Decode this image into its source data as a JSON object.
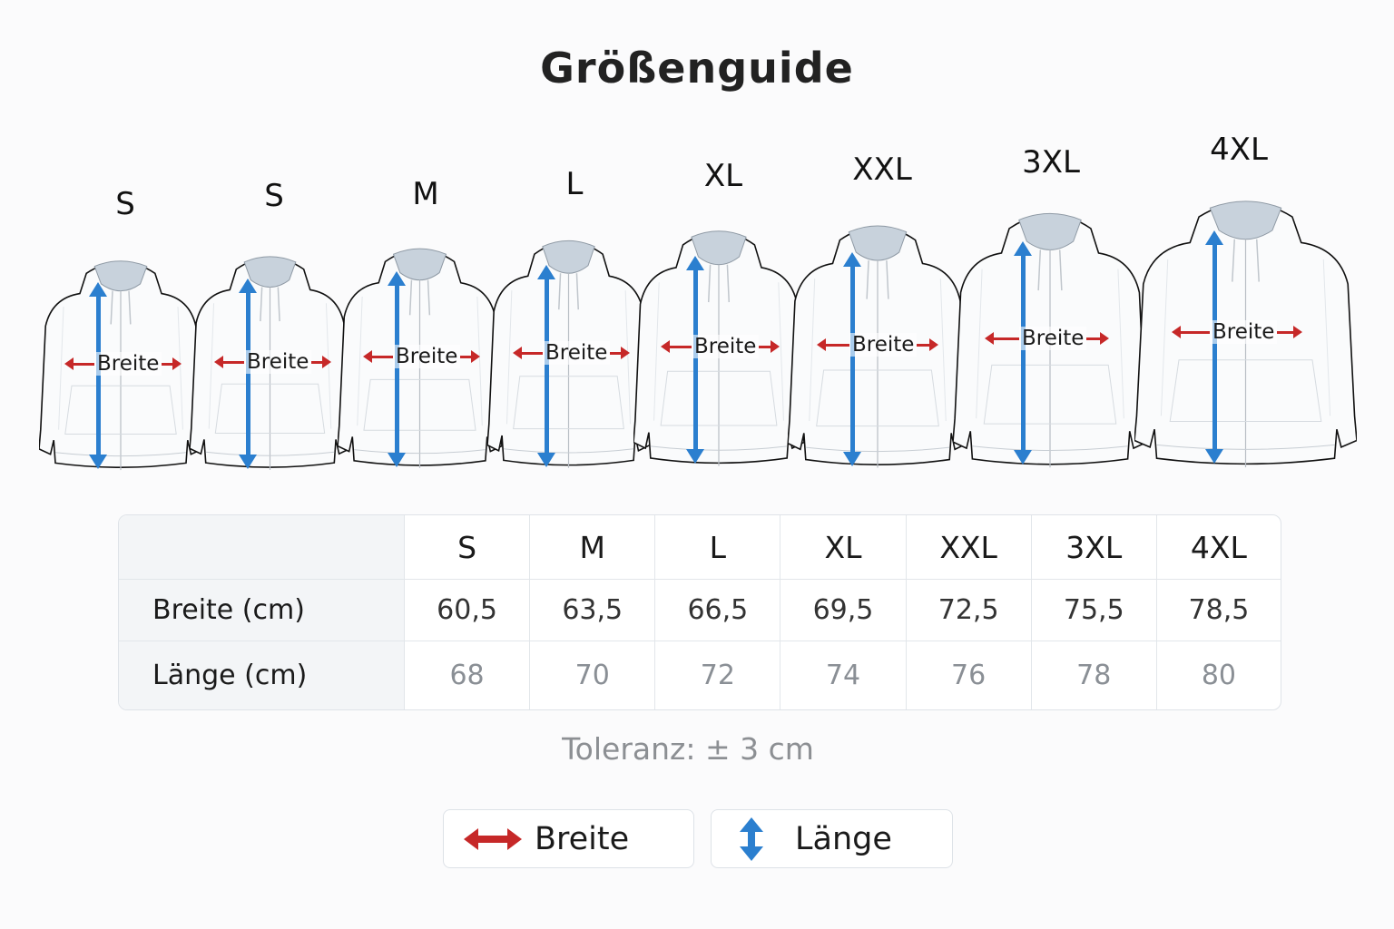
{
  "title": "Größenguide",
  "figures": [
    {
      "size": "S",
      "measure_label": "Breite"
    },
    {
      "size": "S",
      "measure_label": "Breite"
    },
    {
      "size": "M",
      "measure_label": "Breite"
    },
    {
      "size": "L",
      "measure_label": "Breite"
    },
    {
      "size": "XL",
      "measure_label": "Breite"
    },
    {
      "size": "XXL",
      "measure_label": "Breite"
    },
    {
      "size": "3XL",
      "measure_label": "Breite"
    },
    {
      "size": "4XL",
      "measure_label": "Breite"
    }
  ],
  "table": {
    "columns": [
      "",
      "S",
      "M",
      "L",
      "XL",
      "XXL",
      "3XL",
      "4XL"
    ],
    "rows": [
      {
        "label": "Breite (cm)",
        "values": [
          "60,5",
          "63,5",
          "66,5",
          "69,5",
          "72,5",
          "75,5",
          "78,5"
        ]
      },
      {
        "label": "Länge (cm)",
        "values": [
          "68",
          "70",
          "72",
          "74",
          "76",
          "78",
          "80"
        ]
      }
    ]
  },
  "tolerance": "Toleranz: ± 3 cm",
  "legend": [
    {
      "label": "Breite",
      "icon": "horizontal-double-arrow-icon",
      "color": "#c62828"
    },
    {
      "label": "Länge",
      "icon": "vertical-double-arrow-icon",
      "color": "#2b7fcf"
    }
  ],
  "colors": {
    "width_arrow": "#c62828",
    "length_arrow": "#2b7fcf"
  }
}
